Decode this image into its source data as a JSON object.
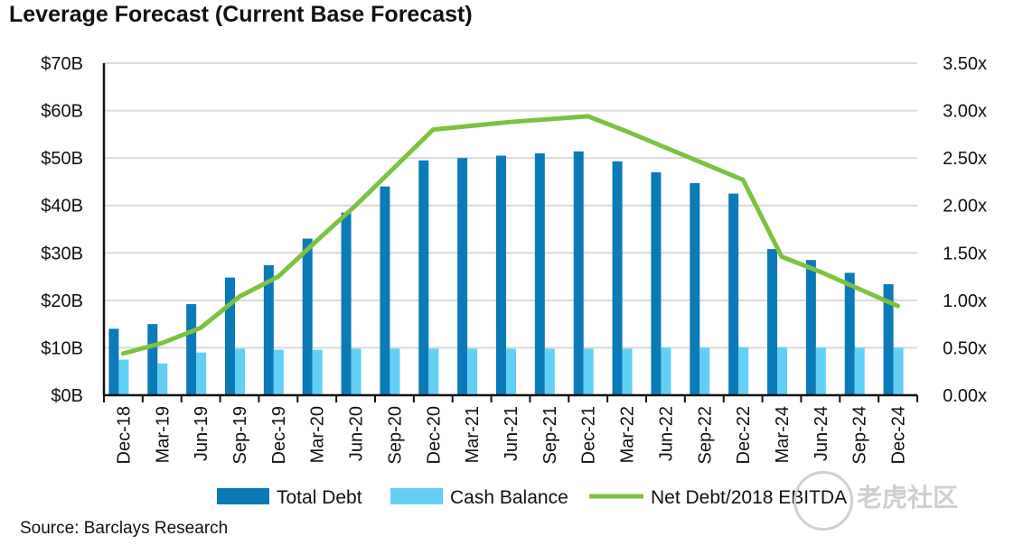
{
  "title": "Leverage Forecast (Current Base Forecast)",
  "source": "Source: Barclays Research",
  "watermark": "老虎社区",
  "chart_data": {
    "type": "bar",
    "categories": [
      "Dec-18",
      "Mar-19",
      "Jun-19",
      "Sep-19",
      "Dec-19",
      "Mar-20",
      "Jun-20",
      "Sep-20",
      "Dec-20",
      "Mar-21",
      "Jun-21",
      "Sep-21",
      "Dec-21",
      "Mar-22",
      "Jun-22",
      "Sep-22",
      "Dec-22",
      "Mar-24",
      "Jun-24",
      "Sep-24",
      "Dec-24"
    ],
    "y_left": {
      "ylim": [
        0,
        70
      ],
      "ticks": [
        "$0B",
        "$10B",
        "$20B",
        "$30B",
        "$40B",
        "$50B",
        "$60B",
        "$70B"
      ]
    },
    "y_right": {
      "ylim": [
        0,
        3.5
      ],
      "ticks": [
        "0.00x",
        "0.50x",
        "1.00x",
        "1.50x",
        "2.00x",
        "2.50x",
        "3.00x",
        "3.50x"
      ]
    },
    "grid": true,
    "legend_position": "bottom",
    "series": [
      {
        "name": "Total Debt",
        "type": "bar",
        "axis": "left",
        "color": "#0a7ab8",
        "values": [
          14,
          15,
          19.2,
          24.8,
          27.4,
          33,
          38.5,
          44,
          49.5,
          50,
          50.5,
          51,
          51.4,
          49.3,
          47,
          44.7,
          42.5,
          30.8,
          28.5,
          25.8,
          23.4
        ]
      },
      {
        "name": "Cash Balance",
        "type": "bar",
        "axis": "left",
        "color": "#62d0f5",
        "values": [
          7.5,
          6.7,
          9,
          9.8,
          9.6,
          9.6,
          9.8,
          9.8,
          9.8,
          9.8,
          9.8,
          9.8,
          9.8,
          9.8,
          10,
          10,
          10.1,
          10.1,
          10,
          10,
          10
        ]
      },
      {
        "name": "Net Debt/2018 EBITDA",
        "type": "line",
        "axis": "right",
        "color": "#7cc242",
        "values": [
          0.44,
          0.55,
          0.71,
          1.04,
          1.25,
          1.63,
          2.0,
          2.4,
          2.8,
          2.84,
          2.88,
          2.91,
          2.94,
          2.78,
          2.61,
          2.44,
          2.27,
          1.46,
          1.3,
          1.12,
          0.94
        ]
      }
    ]
  }
}
